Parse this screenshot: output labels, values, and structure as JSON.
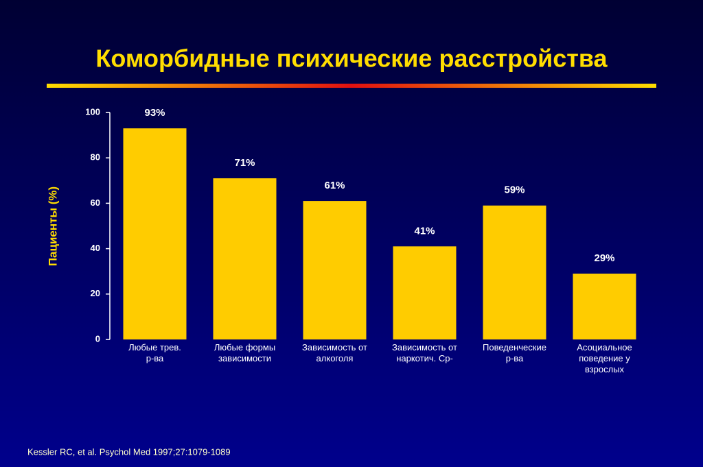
{
  "chart_data": {
    "type": "bar",
    "title": "Коморбидные психические расстройства",
    "y_label": "Пациенты  (%)",
    "footnote": "Kessler RC, et al. Psychol Med 1997;27:1079-1089",
    "categories": [
      "Любые трев.\nр-ва",
      "Любые формы\nзависимости",
      "Зависимость от\nалкоголя",
      "Зависимость от\nнаркотич. Ср-",
      "Поведенческие\nр-ва",
      "Асоциальное\nповедение у\nвзрослых"
    ],
    "values": [
      93,
      71,
      61,
      41,
      59,
      29
    ],
    "value_labels": [
      "93%",
      "71%",
      "61%",
      "41%",
      "59%",
      "29%"
    ],
    "color": "#ffcc00",
    "ylim": [
      0,
      100
    ],
    "yticks": [
      0,
      20,
      40,
      60,
      80,
      100
    ]
  }
}
